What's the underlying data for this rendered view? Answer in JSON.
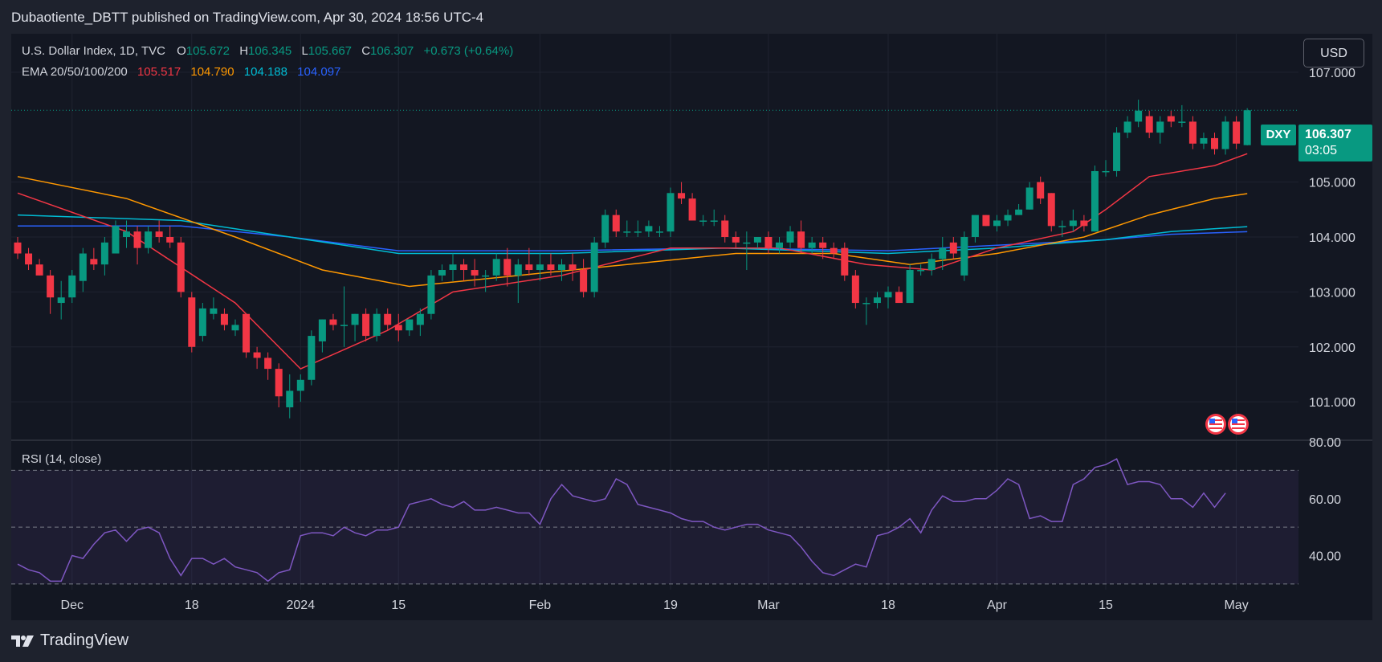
{
  "header": {
    "published": "Dubaotiente_DBTT published on TradingView.com, Apr 30, 2024 18:56 UTC-4"
  },
  "legend": {
    "symbol": "U.S. Dollar Index, 1D, TVC",
    "open_label": "O",
    "open": "105.672",
    "high_label": "H",
    "high": "106.345",
    "low_label": "L",
    "low": "105.667",
    "close_label": "C",
    "close": "106.307",
    "change": "+0.673 (+0.64%)",
    "ema_label": "EMA 20/50/100/200",
    "ema_values": [
      "105.517",
      "104.790",
      "104.188",
      "104.097"
    ]
  },
  "currency_button": "USD",
  "price_tag": {
    "symbol": "DXY",
    "price": "106.307",
    "countdown": "03:05"
  },
  "rsi_label": "RSI (14, close)",
  "footer": {
    "brand": "TradingView"
  },
  "colors": {
    "up": "#089981",
    "down": "#f23645",
    "ema20": "#f23645",
    "ema50": "#ff9800",
    "ema100": "#00bcd4",
    "ema200": "#2962ff",
    "rsi": "#7e57c2"
  },
  "chart_data": {
    "type": "candlestick",
    "title": "U.S. Dollar Index, 1D, TVC",
    "ylim": [
      100.3,
      107.7
    ],
    "y_ticks": [
      "107.000",
      "105.000",
      "104.000",
      "103.000",
      "102.000",
      "101.000"
    ],
    "x_ticks": [
      {
        "label": "Dec",
        "index": 5
      },
      {
        "label": "18",
        "index": 16
      },
      {
        "label": "2024",
        "index": 26
      },
      {
        "label": "15",
        "index": 35
      },
      {
        "label": "Feb",
        "index": 48
      },
      {
        "label": "19",
        "index": 60
      },
      {
        "label": "Mar",
        "index": 69
      },
      {
        "label": "18",
        "index": 80
      },
      {
        "label": "Apr",
        "index": 90
      },
      {
        "label": "15",
        "index": 100
      },
      {
        "label": "May",
        "index": 112
      }
    ],
    "candles": [
      {
        "o": 103.9,
        "h": 104.0,
        "l": 103.6,
        "c": 103.7
      },
      {
        "o": 103.7,
        "h": 103.8,
        "l": 103.4,
        "c": 103.5
      },
      {
        "o": 103.5,
        "h": 103.6,
        "l": 103.3,
        "c": 103.3
      },
      {
        "o": 103.3,
        "h": 103.4,
        "l": 102.6,
        "c": 102.9
      },
      {
        "o": 102.8,
        "h": 103.2,
        "l": 102.5,
        "c": 102.9
      },
      {
        "o": 102.9,
        "h": 103.4,
        "l": 102.8,
        "c": 103.3
      },
      {
        "o": 103.2,
        "h": 103.8,
        "l": 103.0,
        "c": 103.7
      },
      {
        "o": 103.6,
        "h": 103.8,
        "l": 103.4,
        "c": 103.5
      },
      {
        "o": 103.5,
        "h": 104.0,
        "l": 103.3,
        "c": 103.9
      },
      {
        "o": 103.7,
        "h": 104.3,
        "l": 103.7,
        "c": 104.2
      },
      {
        "o": 104.0,
        "h": 104.3,
        "l": 103.8,
        "c": 104.1
      },
      {
        "o": 104.1,
        "h": 104.2,
        "l": 103.5,
        "c": 103.8
      },
      {
        "o": 103.8,
        "h": 104.2,
        "l": 103.7,
        "c": 104.1
      },
      {
        "o": 104.1,
        "h": 104.3,
        "l": 103.9,
        "c": 104.0
      },
      {
        "o": 104.0,
        "h": 104.2,
        "l": 103.8,
        "c": 103.9
      },
      {
        "o": 103.9,
        "h": 104.0,
        "l": 102.9,
        "c": 103.0
      },
      {
        "o": 102.9,
        "h": 103.0,
        "l": 101.9,
        "c": 102.0
      },
      {
        "o": 102.2,
        "h": 102.8,
        "l": 102.1,
        "c": 102.7
      },
      {
        "o": 102.6,
        "h": 102.9,
        "l": 102.5,
        "c": 102.7
      },
      {
        "o": 102.6,
        "h": 102.7,
        "l": 102.3,
        "c": 102.4
      },
      {
        "o": 102.3,
        "h": 102.5,
        "l": 102.2,
        "c": 102.4
      },
      {
        "o": 102.6,
        "h": 102.6,
        "l": 101.8,
        "c": 101.9
      },
      {
        "o": 101.9,
        "h": 102.0,
        "l": 101.6,
        "c": 101.8
      },
      {
        "o": 101.8,
        "h": 101.9,
        "l": 101.4,
        "c": 101.6
      },
      {
        "o": 101.6,
        "h": 101.7,
        "l": 100.9,
        "c": 101.1
      },
      {
        "o": 100.9,
        "h": 101.5,
        "l": 100.7,
        "c": 101.2
      },
      {
        "o": 101.2,
        "h": 101.5,
        "l": 101.0,
        "c": 101.4
      },
      {
        "o": 101.4,
        "h": 102.3,
        "l": 101.3,
        "c": 102.2
      },
      {
        "o": 102.1,
        "h": 102.5,
        "l": 101.9,
        "c": 102.5
      },
      {
        "o": 102.5,
        "h": 102.6,
        "l": 102.3,
        "c": 102.4
      },
      {
        "o": 102.4,
        "h": 103.1,
        "l": 102.0,
        "c": 102.4
      },
      {
        "o": 102.4,
        "h": 102.6,
        "l": 102.1,
        "c": 102.6
      },
      {
        "o": 102.6,
        "h": 102.7,
        "l": 102.1,
        "c": 102.2
      },
      {
        "o": 102.2,
        "h": 102.7,
        "l": 102.1,
        "c": 102.6
      },
      {
        "o": 102.6,
        "h": 102.7,
        "l": 102.3,
        "c": 102.4
      },
      {
        "o": 102.4,
        "h": 102.6,
        "l": 102.1,
        "c": 102.3
      },
      {
        "o": 102.3,
        "h": 102.5,
        "l": 102.2,
        "c": 102.5
      },
      {
        "o": 102.4,
        "h": 102.7,
        "l": 102.2,
        "c": 102.6
      },
      {
        "o": 102.6,
        "h": 103.4,
        "l": 102.5,
        "c": 103.3
      },
      {
        "o": 103.3,
        "h": 103.5,
        "l": 103.2,
        "c": 103.4
      },
      {
        "o": 103.4,
        "h": 103.7,
        "l": 103.2,
        "c": 103.5
      },
      {
        "o": 103.5,
        "h": 103.6,
        "l": 103.2,
        "c": 103.4
      },
      {
        "o": 103.4,
        "h": 103.6,
        "l": 103.1,
        "c": 103.3
      },
      {
        "o": 103.3,
        "h": 103.4,
        "l": 103.0,
        "c": 103.3
      },
      {
        "o": 103.3,
        "h": 103.7,
        "l": 103.2,
        "c": 103.6
      },
      {
        "o": 103.6,
        "h": 103.8,
        "l": 103.1,
        "c": 103.3
      },
      {
        "o": 103.3,
        "h": 103.6,
        "l": 102.8,
        "c": 103.5
      },
      {
        "o": 103.5,
        "h": 103.8,
        "l": 103.3,
        "c": 103.4
      },
      {
        "o": 103.4,
        "h": 103.7,
        "l": 103.2,
        "c": 103.5
      },
      {
        "o": 103.5,
        "h": 103.7,
        "l": 103.3,
        "c": 103.4
      },
      {
        "o": 103.4,
        "h": 103.6,
        "l": 103.2,
        "c": 103.5
      },
      {
        "o": 103.5,
        "h": 103.7,
        "l": 103.2,
        "c": 103.4
      },
      {
        "o": 103.4,
        "h": 103.6,
        "l": 102.9,
        "c": 103.0
      },
      {
        "o": 103.0,
        "h": 104.0,
        "l": 102.9,
        "c": 103.9
      },
      {
        "o": 103.9,
        "h": 104.5,
        "l": 103.8,
        "c": 104.4
      },
      {
        "o": 104.4,
        "h": 104.5,
        "l": 104.0,
        "c": 104.1
      },
      {
        "o": 104.1,
        "h": 104.3,
        "l": 104.0,
        "c": 104.1
      },
      {
        "o": 104.1,
        "h": 104.3,
        "l": 104.0,
        "c": 104.1
      },
      {
        "o": 104.1,
        "h": 104.3,
        "l": 104.0,
        "c": 104.2
      },
      {
        "o": 104.1,
        "h": 104.2,
        "l": 104.0,
        "c": 104.1
      },
      {
        "o": 104.1,
        "h": 104.9,
        "l": 104.0,
        "c": 104.8
      },
      {
        "o": 104.8,
        "h": 105.0,
        "l": 104.6,
        "c": 104.7
      },
      {
        "o": 104.7,
        "h": 104.8,
        "l": 104.3,
        "c": 104.3
      },
      {
        "o": 104.3,
        "h": 104.4,
        "l": 104.2,
        "c": 104.3
      },
      {
        "o": 104.3,
        "h": 104.5,
        "l": 104.2,
        "c": 104.3
      },
      {
        "o": 104.3,
        "h": 104.4,
        "l": 103.9,
        "c": 104.0
      },
      {
        "o": 104.0,
        "h": 104.1,
        "l": 103.8,
        "c": 103.9
      },
      {
        "o": 103.9,
        "h": 104.1,
        "l": 103.4,
        "c": 103.9
      },
      {
        "o": 103.9,
        "h": 104.0,
        "l": 103.8,
        "c": 104.0
      },
      {
        "o": 104.0,
        "h": 104.1,
        "l": 103.7,
        "c": 103.8
      },
      {
        "o": 103.8,
        "h": 104.0,
        "l": 103.7,
        "c": 103.9
      },
      {
        "o": 103.9,
        "h": 104.2,
        "l": 103.8,
        "c": 104.1
      },
      {
        "o": 104.1,
        "h": 104.3,
        "l": 103.7,
        "c": 103.8
      },
      {
        "o": 103.8,
        "h": 104.0,
        "l": 103.7,
        "c": 103.9
      },
      {
        "o": 103.9,
        "h": 104.0,
        "l": 103.6,
        "c": 103.8
      },
      {
        "o": 103.8,
        "h": 103.9,
        "l": 103.6,
        "c": 103.7
      },
      {
        "o": 103.8,
        "h": 103.9,
        "l": 103.2,
        "c": 103.3
      },
      {
        "o": 103.3,
        "h": 103.4,
        "l": 102.7,
        "c": 102.8
      },
      {
        "o": 102.8,
        "h": 102.9,
        "l": 102.4,
        "c": 102.8
      },
      {
        "o": 102.8,
        "h": 103.0,
        "l": 102.7,
        "c": 102.9
      },
      {
        "o": 102.9,
        "h": 103.1,
        "l": 102.7,
        "c": 103.0
      },
      {
        "o": 103.0,
        "h": 103.1,
        "l": 102.8,
        "c": 102.8
      },
      {
        "o": 102.8,
        "h": 103.5,
        "l": 102.8,
        "c": 103.4
      },
      {
        "o": 103.4,
        "h": 103.5,
        "l": 103.3,
        "c": 103.4
      },
      {
        "o": 103.4,
        "h": 103.7,
        "l": 103.3,
        "c": 103.6
      },
      {
        "o": 103.6,
        "h": 104.0,
        "l": 103.4,
        "c": 103.8
      },
      {
        "o": 103.9,
        "h": 104.0,
        "l": 103.6,
        "c": 103.7
      },
      {
        "o": 103.3,
        "h": 104.1,
        "l": 103.2,
        "c": 104.0
      },
      {
        "o": 104.0,
        "h": 104.4,
        "l": 103.9,
        "c": 104.4
      },
      {
        "o": 104.4,
        "h": 104.4,
        "l": 104.2,
        "c": 104.2
      },
      {
        "o": 104.2,
        "h": 104.4,
        "l": 104.1,
        "c": 104.3
      },
      {
        "o": 104.3,
        "h": 104.5,
        "l": 104.2,
        "c": 104.4
      },
      {
        "o": 104.4,
        "h": 104.6,
        "l": 104.4,
        "c": 104.5
      },
      {
        "o": 104.5,
        "h": 105.0,
        "l": 104.5,
        "c": 104.9
      },
      {
        "o": 105.0,
        "h": 105.1,
        "l": 104.6,
        "c": 104.7
      },
      {
        "o": 104.8,
        "h": 104.8,
        "l": 104.1,
        "c": 104.2
      },
      {
        "o": 104.2,
        "h": 104.3,
        "l": 104.0,
        "c": 104.2
      },
      {
        "o": 104.2,
        "h": 104.5,
        "l": 104.1,
        "c": 104.3
      },
      {
        "o": 104.3,
        "h": 104.4,
        "l": 104.1,
        "c": 104.2
      },
      {
        "o": 104.1,
        "h": 105.3,
        "l": 104.1,
        "c": 105.2
      },
      {
        "o": 105.2,
        "h": 105.4,
        "l": 105.1,
        "c": 105.2
      },
      {
        "o": 105.2,
        "h": 106.0,
        "l": 105.1,
        "c": 105.9
      },
      {
        "o": 105.9,
        "h": 106.2,
        "l": 105.8,
        "c": 106.1
      },
      {
        "o": 106.1,
        "h": 106.5,
        "l": 106.0,
        "c": 106.3
      },
      {
        "o": 106.2,
        "h": 106.3,
        "l": 105.8,
        "c": 105.9
      },
      {
        "o": 105.9,
        "h": 106.2,
        "l": 105.7,
        "c": 106.1
      },
      {
        "o": 106.2,
        "h": 106.3,
        "l": 106.0,
        "c": 106.1
      },
      {
        "o": 106.1,
        "h": 106.4,
        "l": 106.0,
        "c": 106.1
      },
      {
        "o": 106.1,
        "h": 106.2,
        "l": 105.6,
        "c": 105.7
      },
      {
        "o": 105.7,
        "h": 105.9,
        "l": 105.6,
        "c": 105.8
      },
      {
        "o": 105.8,
        "h": 105.9,
        "l": 105.5,
        "c": 105.6
      },
      {
        "o": 105.6,
        "h": 106.2,
        "l": 105.5,
        "c": 106.1
      },
      {
        "o": 106.1,
        "h": 106.2,
        "l": 105.6,
        "c": 105.7
      },
      {
        "o": 105.672,
        "h": 106.345,
        "l": 105.667,
        "c": 106.307
      }
    ],
    "ema20": [
      [
        0,
        104.8
      ],
      [
        10,
        104.1
      ],
      [
        20,
        102.8
      ],
      [
        26,
        101.6
      ],
      [
        34,
        102.3
      ],
      [
        40,
        103.0
      ],
      [
        50,
        103.3
      ],
      [
        60,
        103.8
      ],
      [
        70,
        103.8
      ],
      [
        78,
        103.5
      ],
      [
        84,
        103.4
      ],
      [
        90,
        103.8
      ],
      [
        97,
        104.1
      ],
      [
        100,
        104.5
      ],
      [
        104,
        105.1
      ],
      [
        110,
        105.3
      ],
      [
        113,
        105.517
      ]
    ],
    "ema50": [
      [
        0,
        105.1
      ],
      [
        10,
        104.7
      ],
      [
        20,
        104.0
      ],
      [
        28,
        103.4
      ],
      [
        36,
        103.1
      ],
      [
        46,
        103.3
      ],
      [
        56,
        103.5
      ],
      [
        66,
        103.7
      ],
      [
        75,
        103.7
      ],
      [
        82,
        103.5
      ],
      [
        90,
        103.7
      ],
      [
        98,
        104.0
      ],
      [
        104,
        104.4
      ],
      [
        110,
        104.7
      ],
      [
        113,
        104.79
      ]
    ],
    "ema100": [
      [
        0,
        104.4
      ],
      [
        15,
        104.3
      ],
      [
        25,
        104.0
      ],
      [
        35,
        103.7
      ],
      [
        50,
        103.7
      ],
      [
        65,
        103.8
      ],
      [
        80,
        103.7
      ],
      [
        90,
        103.8
      ],
      [
        100,
        103.95
      ],
      [
        106,
        104.1
      ],
      [
        113,
        104.188
      ]
    ],
    "ema200": [
      [
        0,
        104.2
      ],
      [
        15,
        104.2
      ],
      [
        25,
        104.0
      ],
      [
        35,
        103.75
      ],
      [
        50,
        103.75
      ],
      [
        65,
        103.8
      ],
      [
        80,
        103.75
      ],
      [
        90,
        103.85
      ],
      [
        100,
        103.95
      ],
      [
        106,
        104.05
      ],
      [
        113,
        104.097
      ]
    ],
    "rsi": {
      "label": "RSI (14, close)",
      "ylim": [
        28,
        80
      ],
      "y_ticks": [
        "80.00",
        "60.00",
        "40.00"
      ],
      "bands": [
        70,
        50,
        30
      ],
      "values": [
        37,
        35,
        34,
        31,
        31,
        40,
        39,
        44,
        48,
        49,
        45,
        49,
        50,
        48,
        39,
        33,
        39,
        39,
        37,
        39,
        36,
        35,
        34,
        31,
        34,
        35,
        47,
        48,
        48,
        47,
        50,
        48,
        47,
        49,
        49,
        50,
        58,
        59,
        60,
        58,
        57,
        59,
        56,
        56,
        57,
        56,
        55,
        55,
        51,
        60,
        65,
        61,
        60,
        59,
        60,
        67,
        65,
        58,
        57,
        56,
        55,
        53,
        52,
        52,
        50,
        49,
        50,
        51,
        51,
        49,
        48,
        47,
        43,
        38,
        34,
        33,
        35,
        37,
        36,
        47,
        48,
        50,
        53,
        48,
        56,
        61,
        59,
        59,
        60,
        60,
        63,
        67,
        65,
        53,
        54,
        52,
        52,
        65,
        67,
        71,
        72,
        74,
        65,
        66,
        66,
        65,
        60,
        60,
        57,
        62,
        57,
        62
      ]
    }
  }
}
